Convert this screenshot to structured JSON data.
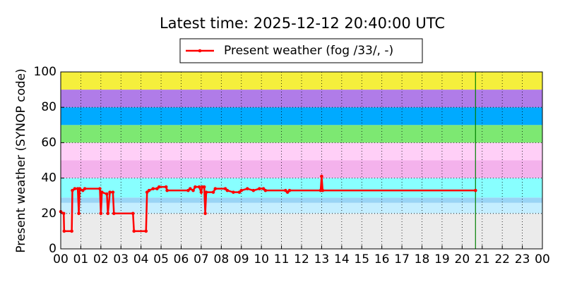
{
  "chart_data": {
    "type": "line",
    "title": "Latest time: 2025-12-12 20:40:00 UTC",
    "ylabel": "Present weather (SYNOP code)",
    "xlim": [
      0,
      24
    ],
    "ylim": [
      0,
      100
    ],
    "xticks": [
      {
        "value": 0,
        "label": "00"
      },
      {
        "value": 1,
        "label": "01"
      },
      {
        "value": 2,
        "label": "02"
      },
      {
        "value": 3,
        "label": "03"
      },
      {
        "value": 4,
        "label": "04"
      },
      {
        "value": 5,
        "label": "05"
      },
      {
        "value": 6,
        "label": "06"
      },
      {
        "value": 7,
        "label": "07"
      },
      {
        "value": 8,
        "label": "08"
      },
      {
        "value": 9,
        "label": "09"
      },
      {
        "value": 10,
        "label": "10"
      },
      {
        "value": 11,
        "label": "11"
      },
      {
        "value": 12,
        "label": "12"
      },
      {
        "value": 13,
        "label": "13"
      },
      {
        "value": 14,
        "label": "14"
      },
      {
        "value": 15,
        "label": "15"
      },
      {
        "value": 16,
        "label": "16"
      },
      {
        "value": 17,
        "label": "17"
      },
      {
        "value": 18,
        "label": "18"
      },
      {
        "value": 19,
        "label": "19"
      },
      {
        "value": 20,
        "label": "20"
      },
      {
        "value": 21,
        "label": "21"
      },
      {
        "value": 22,
        "label": "22"
      },
      {
        "value": 23,
        "label": "23"
      },
      {
        "value": 24,
        "label": "00"
      }
    ],
    "yticks": [
      0,
      20,
      40,
      60,
      80,
      100
    ],
    "grid": true,
    "legend": "top",
    "bands": [
      {
        "from": 0,
        "to": 20,
        "color": "#ebebeb"
      },
      {
        "from": 20,
        "to": 26,
        "color": "#c4eeff"
      },
      {
        "from": 26,
        "to": 29,
        "color": "#99d4f5"
      },
      {
        "from": 29,
        "to": 40,
        "color": "#88ffff"
      },
      {
        "from": 40,
        "to": 50,
        "color": "#f4b2ec"
      },
      {
        "from": 50,
        "to": 60,
        "color": "#ffcff7"
      },
      {
        "from": 60,
        "to": 70,
        "color": "#7de872"
      },
      {
        "from": 70,
        "to": 80,
        "color": "#00aaff"
      },
      {
        "from": 80,
        "to": 90,
        "color": "#b07ce8"
      },
      {
        "from": 90,
        "to": 100,
        "color": "#f5ef3c"
      }
    ],
    "latest_x": 20.667,
    "latest_color": "#008000",
    "x": [
      0.0,
      0.15,
      0.17,
      0.55,
      0.58,
      0.7,
      0.85,
      0.9,
      0.95,
      1.1,
      1.2,
      1.95,
      2.0,
      2.05,
      2.3,
      2.35,
      2.45,
      2.6,
      2.65,
      3.6,
      3.65,
      4.25,
      4.3,
      4.4,
      4.6,
      4.8,
      4.9,
      5.25,
      5.3,
      6.35,
      6.45,
      6.6,
      6.7,
      6.9,
      7.0,
      7.05,
      7.15,
      7.2,
      7.25,
      7.6,
      7.7,
      8.2,
      8.3,
      8.6,
      8.9,
      9.0,
      9.3,
      9.6,
      9.9,
      10.1,
      10.2,
      11.2,
      11.3,
      11.4,
      12.95,
      13.0,
      13.05,
      20.667
    ],
    "series": [
      {
        "name": "Present weather (fog /33/, -)",
        "color": "#ff0000",
        "values": [
          21,
          20,
          10,
          10,
          33,
          34,
          34,
          20,
          34,
          33,
          34,
          34,
          20,
          32,
          31,
          20,
          32,
          32,
          20,
          20,
          10,
          10,
          32,
          33,
          34,
          34,
          35,
          35,
          33,
          33,
          34,
          33,
          35,
          35,
          32,
          35,
          35,
          20,
          32,
          32,
          34,
          34,
          33,
          32,
          32,
          33,
          34,
          33,
          34,
          34,
          33,
          33,
          32,
          33,
          33,
          41,
          33,
          33
        ]
      }
    ]
  }
}
